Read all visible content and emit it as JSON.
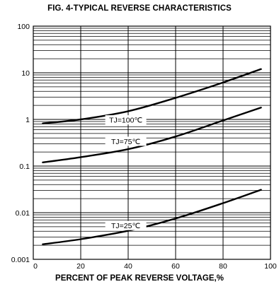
{
  "chart_data": {
    "type": "line",
    "title": "FIG. 4-TYPICAL REVERSE CHARACTERISTICS",
    "xlabel": "PERCENT OF PEAK REVERSE VOLTAGE,%",
    "ylabel": "",
    "xlim": [
      0,
      100
    ],
    "ylim": [
      0.001,
      100
    ],
    "yscale": "log",
    "grid": true,
    "x_ticks": [
      "0",
      "20",
      "40",
      "60",
      "80",
      "100"
    ],
    "y_ticks": [
      "100",
      "10",
      "1",
      "0.1",
      "0.01",
      "0.001"
    ],
    "series": [
      {
        "name": "TJ=100℃",
        "x": [
          4,
          20,
          40,
          60,
          80,
          96
        ],
        "y": [
          0.82,
          1.0,
          1.5,
          2.9,
          6.2,
          12.0
        ]
      },
      {
        "name": "TJ=75℃",
        "x": [
          4,
          20,
          40,
          60,
          80,
          96
        ],
        "y": [
          0.12,
          0.155,
          0.23,
          0.43,
          0.95,
          1.8
        ]
      },
      {
        "name": "TJ=25℃",
        "x": [
          4,
          20,
          40,
          60,
          80,
          96
        ],
        "y": [
          0.0021,
          0.0027,
          0.0041,
          0.0075,
          0.016,
          0.031
        ]
      }
    ]
  }
}
